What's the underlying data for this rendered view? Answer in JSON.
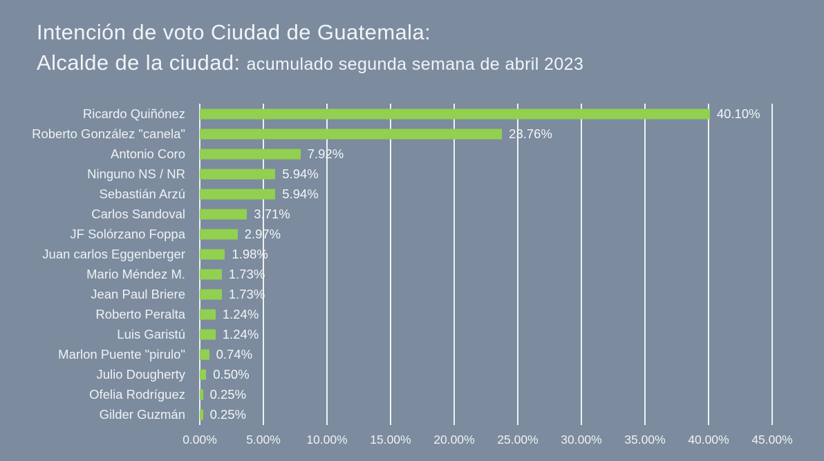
{
  "page": {
    "background_color": "#7c8b9e",
    "text_color": "#f1f4f6"
  },
  "title": {
    "line1": "Intención de voto Ciudad de Guatemala:",
    "line2_main": "Alcalde de la ciudad: ",
    "line2_sub": "acumulado segunda semana de abril 2023"
  },
  "chart_data": {
    "type": "bar",
    "orientation": "horizontal",
    "title": "Intención de voto Ciudad de Guatemala: Alcalde de la ciudad: acumulado segunda semana de abril 2023",
    "categories": [
      "Ricardo Quiñónez",
      "Roberto González \"canela\"",
      "Antonio Coro",
      "Ninguno NS / NR",
      "Sebastián Arzú",
      "Carlos Sandoval",
      "JF Solórzano Foppa",
      "Juan carlos Eggenberger",
      "Mario Méndez M.",
      "Jean Paul Briere",
      "Roberto Peralta",
      "Luis Garistú",
      "Marlon Puente \"pirulo\"",
      "Julio Dougherty",
      "Ofelia Rodríguez",
      "Gilder Guzmán"
    ],
    "values": [
      40.1,
      23.76,
      7.92,
      5.94,
      5.94,
      3.71,
      2.97,
      1.98,
      1.73,
      1.73,
      1.24,
      1.24,
      0.74,
      0.5,
      0.25,
      0.25
    ],
    "value_labels": [
      "40.10%",
      "23.76%",
      "7.92%",
      "5.94%",
      "5.94%",
      "3.71%",
      "2.97%",
      "1.98%",
      "1.73%",
      "1.73%",
      "1.24%",
      "1.24%",
      "0.74%",
      "0.50%",
      "0.25%",
      "0.25%"
    ],
    "xlabel": "",
    "ylabel": "",
    "xlim": [
      0,
      45
    ],
    "x_tick_values": [
      0,
      5,
      10,
      15,
      20,
      25,
      30,
      35,
      40,
      45
    ],
    "x_ticks": [
      "0.00%",
      "5.00%",
      "10.00%",
      "15.00%",
      "20.00%",
      "25.00%",
      "30.00%",
      "35.00%",
      "40.00%",
      "45.00%"
    ],
    "grid": true,
    "gridline_color": "#eff3f5",
    "bar_color": "#92d050",
    "legend": "none"
  }
}
